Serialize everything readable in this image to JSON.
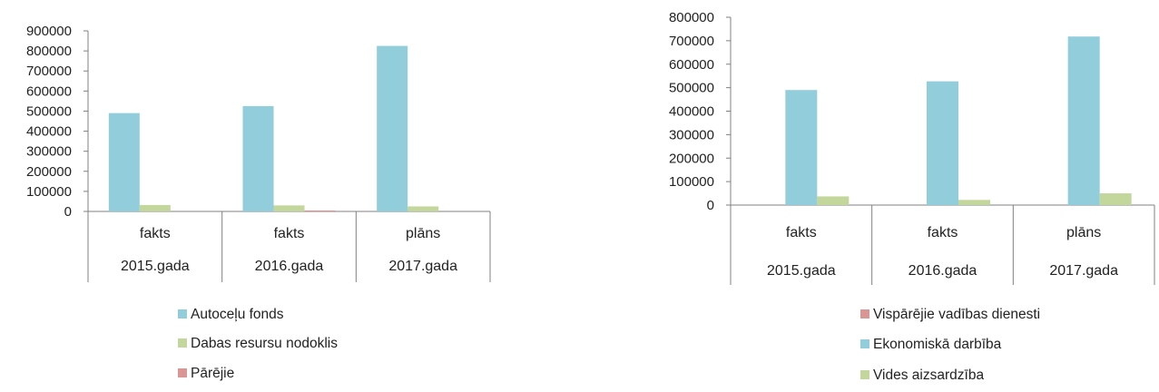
{
  "chart_data": [
    {
      "type": "bar",
      "groups": [
        {
          "label": "fakts",
          "period": "2015.gada"
        },
        {
          "label": "fakts",
          "period": "2016.gada"
        },
        {
          "label": "plāns",
          "period": "2017.gada"
        }
      ],
      "ylim": [
        0,
        900000
      ],
      "yticks": [
        0,
        100000,
        200000,
        300000,
        400000,
        500000,
        600000,
        700000,
        800000,
        900000
      ],
      "series": [
        {
          "name": "Autoceļu fonds",
          "color": "#92CDDC",
          "values": [
            490000,
            525000,
            825000
          ]
        },
        {
          "name": "Dabas resursu nodoklis",
          "color": "#C3D69B",
          "values": [
            32000,
            30000,
            25000
          ]
        },
        {
          "name": "Pārējie",
          "color": "#D99694",
          "values": [
            0,
            5000,
            0
          ]
        }
      ],
      "legend_position": "bottom",
      "grid": false
    },
    {
      "type": "bar",
      "groups": [
        {
          "label": "fakts",
          "period": "2015.gada"
        },
        {
          "label": "fakts",
          "period": "2016.gada"
        },
        {
          "label": "plāns",
          "period": "2017.gada"
        }
      ],
      "ylim": [
        0,
        800000
      ],
      "yticks": [
        0,
        100000,
        200000,
        300000,
        400000,
        500000,
        600000,
        700000,
        800000
      ],
      "series": [
        {
          "name": "Vispārējie vadības dienesti",
          "color": "#D99694",
          "values": [
            0,
            0,
            0
          ]
        },
        {
          "name": "Ekonomiskā darbība",
          "color": "#92CDDC",
          "values": [
            490000,
            527000,
            718000
          ]
        },
        {
          "name": "Vides aizsardzība",
          "color": "#C3D69B",
          "values": [
            37000,
            22000,
            50000
          ]
        }
      ],
      "legend_position": "bottom",
      "grid": false
    }
  ]
}
